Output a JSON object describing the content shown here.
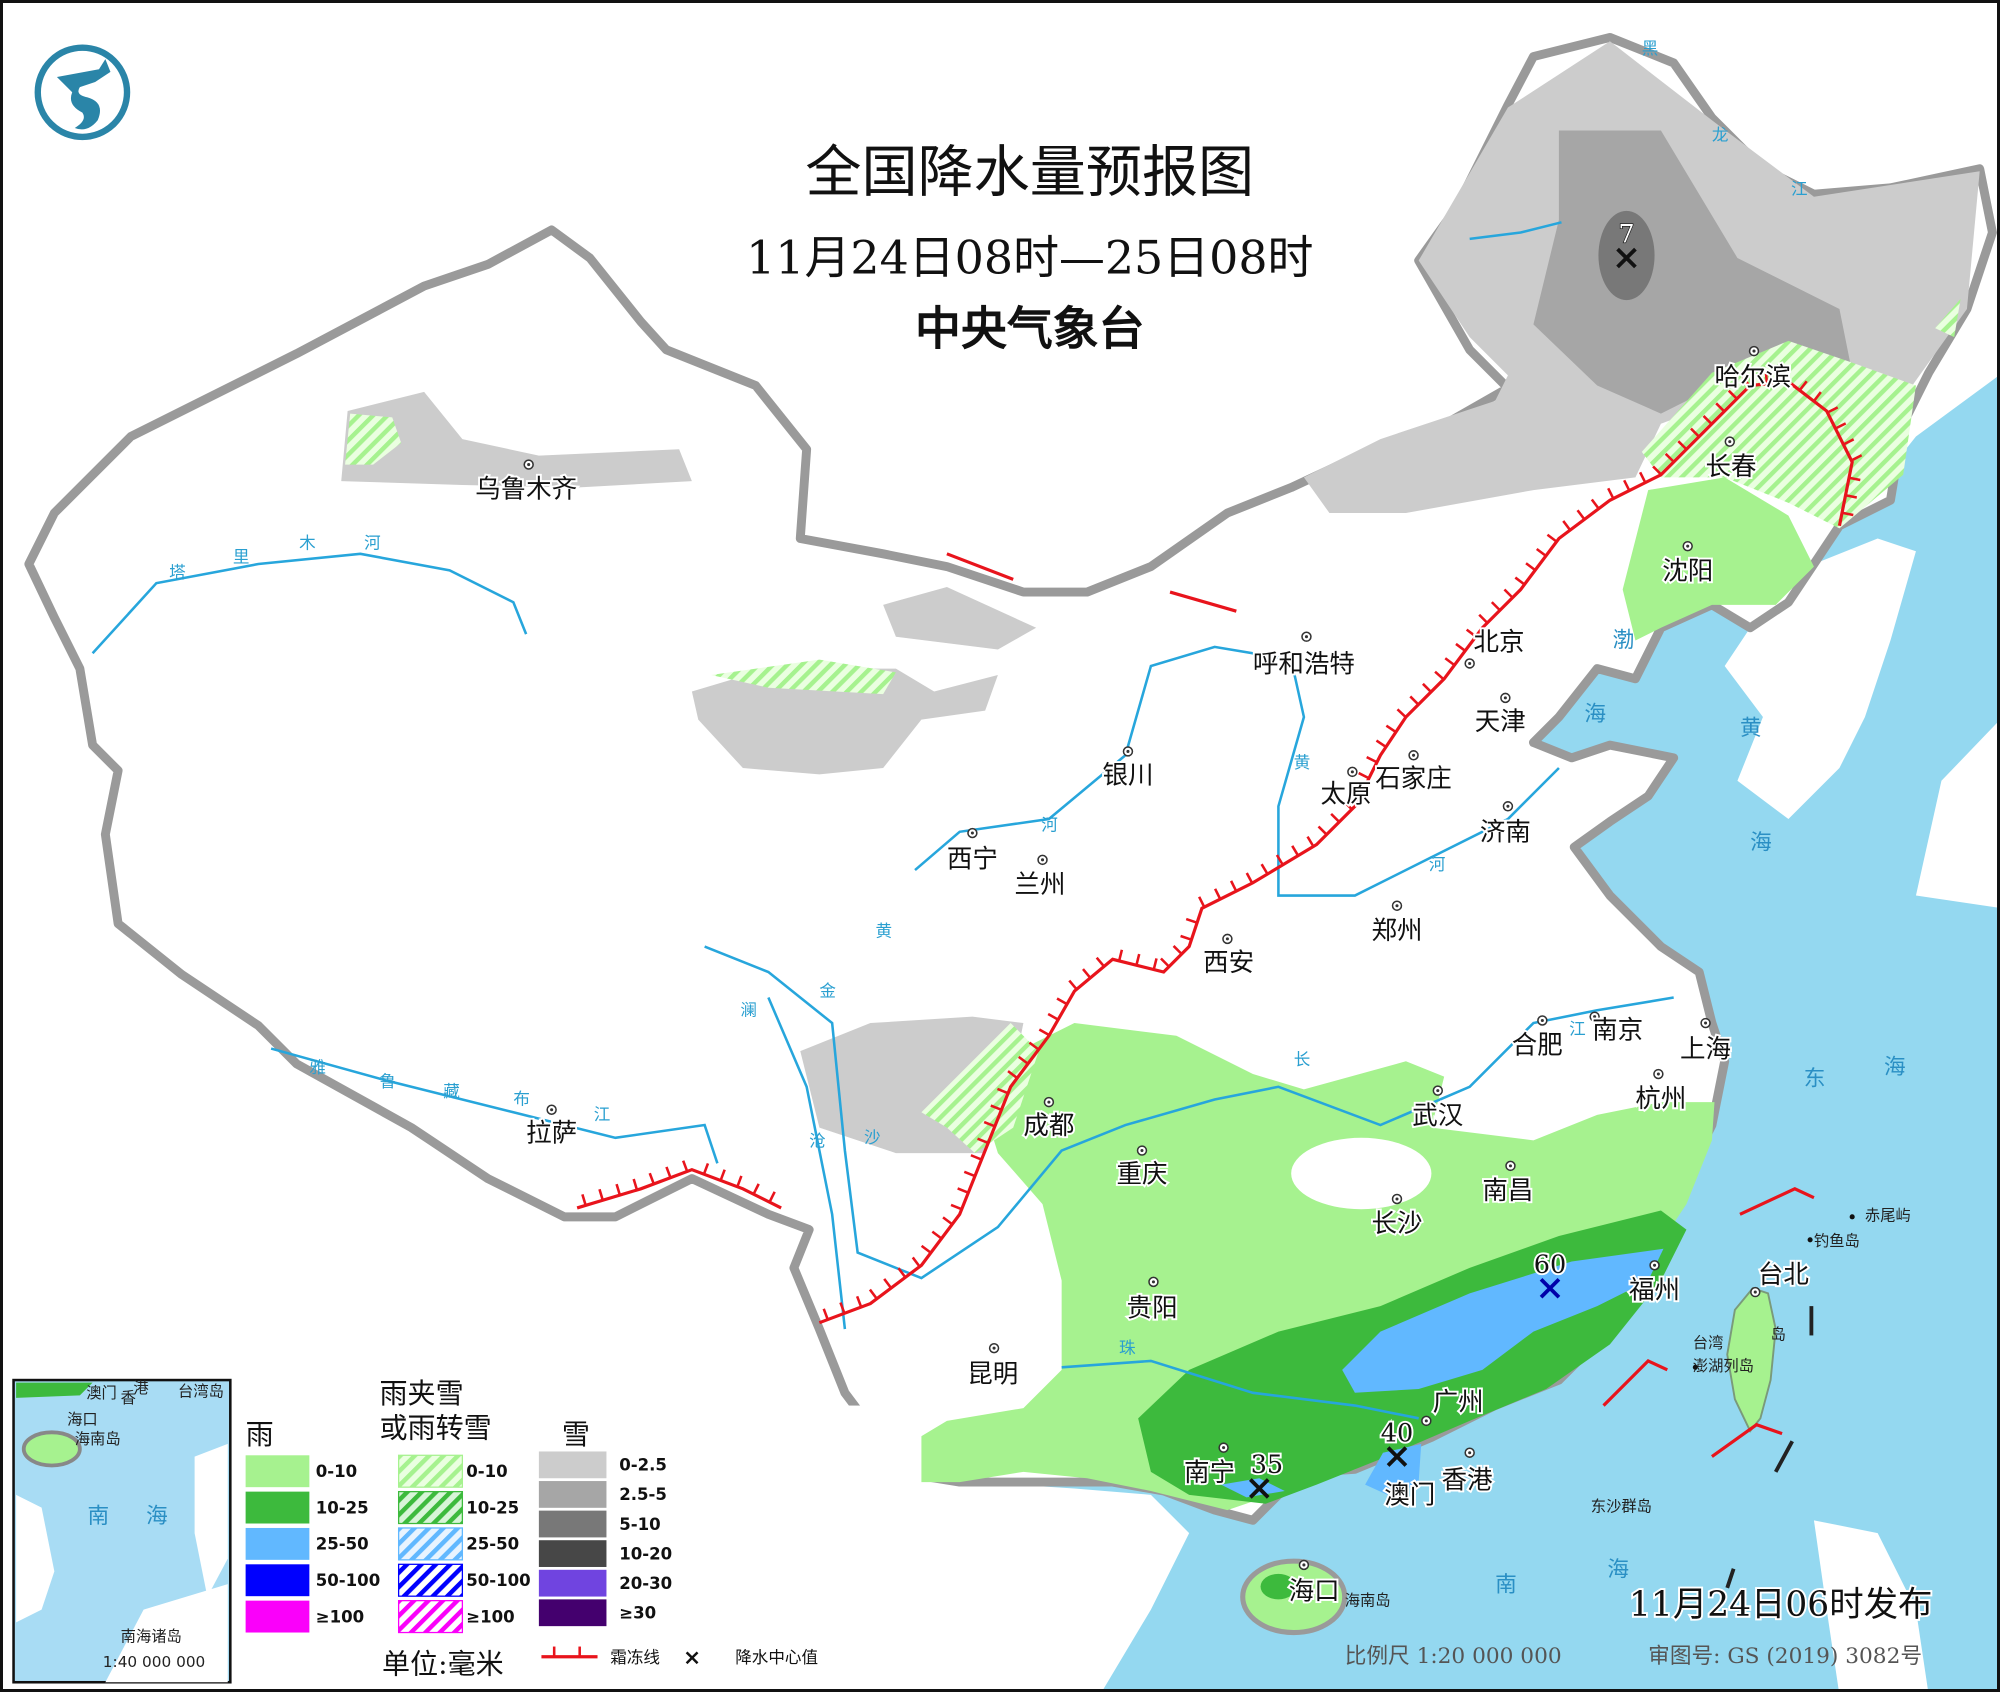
{
  "header": {
    "title": "全国降水量预报图",
    "subtitle": "11月24日08时—25日08时",
    "issuer": "中央气象台"
  },
  "logo": {
    "name": "cma-dragon-logo-icon",
    "color": "#2a85a8"
  },
  "cities": [
    "乌鲁木齐",
    "拉萨",
    "西宁",
    "兰州",
    "银川",
    "呼和浩特",
    "北京",
    "天津",
    "石家庄",
    "太原",
    "济南",
    "郑州",
    "西安",
    "成都",
    "重庆",
    "贵阳",
    "昆明",
    "南宁",
    "广州",
    "澳门",
    "香港",
    "海口",
    "长沙",
    "武汉",
    "南昌",
    "合肥",
    "南京",
    "上海",
    "杭州",
    "福州",
    "台北",
    "沈阳",
    "长春",
    "哈尔滨"
  ],
  "seas": [
    "渤",
    "海",
    "黄",
    "海",
    "东",
    "海",
    "南",
    "海"
  ],
  "islands": [
    "赤尾屿",
    "钓鱼岛",
    "台湾",
    "岛",
    "澎湖列岛",
    "东沙群岛",
    "海南岛"
  ],
  "rivers": [
    "塔",
    "里",
    "木",
    "河",
    "雅",
    "鲁",
    "藏",
    "布",
    "江",
    "黄",
    "河",
    "河",
    "黄",
    "长",
    "江",
    "金",
    "沙",
    "澜",
    "沧",
    "珠",
    "黑",
    "龙",
    "江"
  ],
  "precip_centers": [
    {
      "value": "7",
      "type": "snow"
    },
    {
      "value": "60",
      "type": "rain"
    },
    {
      "value": "40",
      "type": "rain"
    },
    {
      "value": "35",
      "type": "rain"
    }
  ],
  "legend": {
    "rain": {
      "title": "雨",
      "items": [
        {
          "label": "0-10",
          "color": "#a6f28f"
        },
        {
          "label": "10-25",
          "color": "#3dba3d"
        },
        {
          "label": "25-50",
          "color": "#61b8ff"
        },
        {
          "label": "50-100",
          "color": "#0000fe"
        },
        {
          "label": "≥100",
          "color": "#fa00fa"
        }
      ]
    },
    "mixed": {
      "title_line1": "雨夹雪",
      "title_line2": "或雨转雪",
      "items": [
        {
          "label": "0-10",
          "color": "#a6f28f"
        },
        {
          "label": "10-25",
          "color": "#3dba3d"
        },
        {
          "label": "25-50",
          "color": "#61b8ff"
        },
        {
          "label": "50-100",
          "color": "#0000fe"
        },
        {
          "label": "≥100",
          "color": "#fa00fa"
        }
      ]
    },
    "snow": {
      "title": "雪",
      "items": [
        {
          "label": "0-2.5",
          "color": "#cccccc"
        },
        {
          "label": "2.5-5",
          "color": "#a6a6a6"
        },
        {
          "label": "5-10",
          "color": "#787878"
        },
        {
          "label": "10-20",
          "color": "#474747"
        },
        {
          "label": "20-30",
          "color": "#7044e0"
        },
        {
          "label": "≥30",
          "color": "#44006e"
        }
      ]
    },
    "unit": "单位:毫米",
    "frost_line": "霜冻线",
    "center_symbol": "×",
    "center_label": "降水中心值",
    "frost_color": "#e8141c"
  },
  "inset": {
    "hk_label_1": "澳门",
    "hk_label_2": "香",
    "hk_label_3": "港",
    "taiwan": "台湾岛",
    "haikou": "海口",
    "hainan": "海南岛",
    "sea_1": "南",
    "sea_2": "海",
    "islands": "南海诸岛",
    "scale": "1:40 000 000"
  },
  "footer": {
    "issued": "11月24日06时发布",
    "scale": "比例尺 1:20 000 000",
    "approval": "审图号: GS (2019) 3082号"
  }
}
